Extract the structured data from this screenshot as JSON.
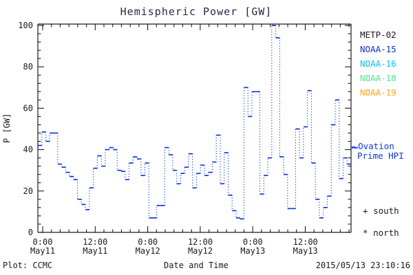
{
  "title": "Hemispheric Power [GW]",
  "colors": {
    "curve": "#0b35e8",
    "axis": "#1a1a1a",
    "title_text": "#26264f",
    "background": "#ffffff"
  },
  "legend": {
    "satellites": [
      {
        "label": "METP-02",
        "color": "#1a1a1a"
      },
      {
        "label": "NOAA-15",
        "color": "#0b2fe0"
      },
      {
        "label": "NOAA-16",
        "color": "#00c3f5"
      },
      {
        "label": "NOAA-18",
        "color": "#4ce98f"
      },
      {
        "label": "NOAA-19",
        "color": "#ffa41c"
      }
    ],
    "ovation": {
      "marker": "– –",
      "line1": "Ovation",
      "line2": "Prime HPI",
      "color": "#0b35e8"
    },
    "south": {
      "marker": "+",
      "label": "south"
    },
    "north": {
      "marker": "*",
      "label": "north"
    }
  },
  "footer": {
    "plot_credit": "Plot: CCMC",
    "xaxis_title": "Date and Time",
    "timestamp": "2015/05/13 23:10:16"
  },
  "chart_data": {
    "type": "line",
    "subtype": "step-stairs (solid horizontal steps, dotted vertical connectors)",
    "title": "Hemispheric Power [GW]",
    "ylabel": "P [GW]",
    "xlabel": "Date and Time",
    "ylim": [
      0,
      100
    ],
    "grid": false,
    "legend_position": "right-outside",
    "y_major_ticks": [
      0,
      20,
      40,
      60,
      80,
      100
    ],
    "y_minor_step": 4,
    "x_major_ticks": [
      {
        "time": "0:00",
        "date": "May11",
        "fraction": 0.0154
      },
      {
        "time": "12:00",
        "date": "May11",
        "fraction": 0.1831
      },
      {
        "time": "0:00",
        "date": "May12",
        "fraction": 0.351
      },
      {
        "time": "12:00",
        "date": "May12",
        "fraction": 0.5187
      },
      {
        "time": "0:00",
        "date": "May13",
        "fraction": 0.6864
      },
      {
        "time": "12:00",
        "date": "May13",
        "fraction": 0.8543
      }
    ],
    "x_minor_step_fraction": 0.027946,
    "x_span_hours": 71.5,
    "series": [
      {
        "name": "NOAA-15 Hemispheric Power (hourly steps, GW)",
        "color": "#0b35e8",
        "values": [
          42,
          48.5,
          44,
          48,
          48,
          33,
          31.5,
          29,
          27,
          25.5,
          16,
          13.5,
          11,
          21.5,
          31,
          37,
          32,
          40,
          41,
          40,
          30,
          29.5,
          25.5,
          33.5,
          36.5,
          35.5,
          27.5,
          33.5,
          7,
          7,
          13,
          13,
          41,
          37.5,
          30,
          23.5,
          28.5,
          31.5,
          38,
          21.5,
          28.5,
          32.5,
          27.5,
          29,
          34,
          47,
          23.5,
          38.5,
          18,
          10.5,
          7,
          6.5,
          70,
          56,
          68,
          68,
          18.5,
          27.5,
          36,
          100,
          94,
          36.5,
          28,
          11.5,
          11.5,
          50,
          36,
          51,
          68.5,
          33.5,
          16,
          7,
          12,
          17.5,
          52,
          64,
          26,
          36,
          33
        ]
      }
    ]
  }
}
